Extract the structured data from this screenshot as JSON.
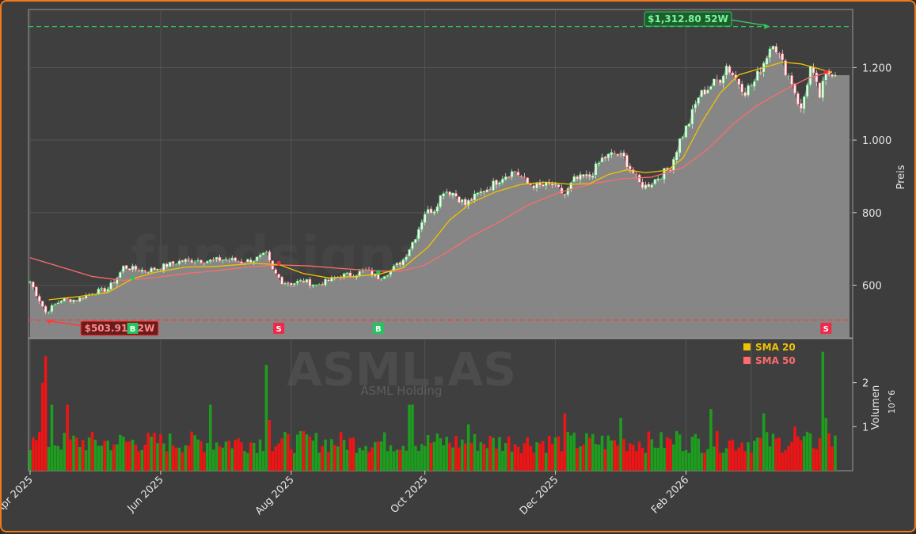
{
  "chart_data": {
    "type": "candlestick",
    "watermark": "fundsignale.trade",
    "ticker_watermark": "ASML.AS",
    "company_watermark": "ASML Holding",
    "x_tick_labels": [
      "Apr 2025",
      "Jun 2025",
      "Aug 2025",
      "Oct 2025",
      "Dec 2025",
      "Feb 2026"
    ],
    "price_axis": {
      "label": "Preis",
      "ticks": [
        "600",
        "800",
        "1.000",
        "1.200"
      ],
      "tick_values": [
        600,
        800,
        1000,
        1200
      ],
      "ylim": [
        455,
        1360
      ]
    },
    "volume_axis": {
      "label": "Volumen",
      "multiplier": "10^6",
      "ticks": [
        "1",
        "2"
      ],
      "tick_values": [
        1,
        2
      ],
      "ylim": [
        0,
        3.0
      ]
    },
    "high_52w": {
      "label": "$1,312.80 52W",
      "value": 1312.8,
      "date_index": 238
    },
    "low_52w": {
      "label": "$503.91 52W",
      "value": 503.91,
      "date_index": 5
    },
    "legend": [
      {
        "name": "SMA 20",
        "color": "#f2c200"
      },
      {
        "name": "SMA 50",
        "color": "#ff6b6b"
      }
    ],
    "signals": [
      {
        "type": "B",
        "date_index": 33,
        "price": 620
      },
      {
        "type": "S",
        "date_index": 80,
        "price": 661
      },
      {
        "type": "B",
        "date_index": 112,
        "price": 636
      },
      {
        "type": "S",
        "date_index": 256,
        "price": 1188
      }
    ],
    "anchors": [
      [
        0,
        610
      ],
      [
        5,
        525
      ],
      [
        10,
        560
      ],
      [
        15,
        560
      ],
      [
        20,
        578
      ],
      [
        25,
        590
      ],
      [
        28,
        620
      ],
      [
        30,
        650
      ],
      [
        33,
        645
      ],
      [
        38,
        640
      ],
      [
        43,
        652
      ],
      [
        48,
        665
      ],
      [
        53,
        670
      ],
      [
        58,
        667
      ],
      [
        63,
        672
      ],
      [
        68,
        665
      ],
      [
        72,
        670
      ],
      [
        76,
        684
      ],
      [
        78,
        640
      ],
      [
        81,
        610
      ],
      [
        84,
        605
      ],
      [
        88,
        612
      ],
      [
        92,
        600
      ],
      [
        96,
        612
      ],
      [
        100,
        626
      ],
      [
        104,
        630
      ],
      [
        108,
        640
      ],
      [
        112,
        622
      ],
      [
        116,
        640
      ],
      [
        120,
        670
      ],
      [
        124,
        735
      ],
      [
        127,
        800
      ],
      [
        130,
        810
      ],
      [
        133,
        862
      ],
      [
        136,
        855
      ],
      [
        140,
        822
      ],
      [
        144,
        850
      ],
      [
        148,
        872
      ],
      [
        152,
        900
      ],
      [
        156,
        915
      ],
      [
        160,
        880
      ],
      [
        164,
        872
      ],
      [
        168,
        876
      ],
      [
        172,
        848
      ],
      [
        175,
        890
      ],
      [
        180,
        900
      ],
      [
        184,
        948
      ],
      [
        188,
        963
      ],
      [
        191,
        950
      ],
      [
        194,
        910
      ],
      [
        196,
        880
      ],
      [
        198,
        873
      ],
      [
        200,
        884
      ],
      [
        203,
        905
      ],
      [
        206,
        925
      ],
      [
        209,
        1000
      ],
      [
        212,
        1050
      ],
      [
        215,
        1120
      ],
      [
        219,
        1150
      ],
      [
        222,
        1170
      ],
      [
        224,
        1205
      ],
      [
        227,
        1170
      ],
      [
        230,
        1135
      ],
      [
        233,
        1160
      ],
      [
        236,
        1215
      ],
      [
        239,
        1275
      ],
      [
        242,
        1210
      ],
      [
        245,
        1160
      ],
      [
        248,
        1080
      ],
      [
        251,
        1200
      ],
      [
        254,
        1120
      ],
      [
        256,
        1180
      ],
      [
        258,
        1188
      ]
    ],
    "sma20": [
      [
        6,
        560
      ],
      [
        15,
        568
      ],
      [
        25,
        580
      ],
      [
        33,
        618
      ],
      [
        40,
        635
      ],
      [
        50,
        650
      ],
      [
        60,
        652
      ],
      [
        72,
        660
      ],
      [
        80,
        657
      ],
      [
        88,
        632
      ],
      [
        96,
        620
      ],
      [
        104,
        624
      ],
      [
        112,
        630
      ],
      [
        120,
        648
      ],
      [
        128,
        705
      ],
      [
        135,
        780
      ],
      [
        142,
        828
      ],
      [
        150,
        858
      ],
      [
        158,
        878
      ],
      [
        166,
        884
      ],
      [
        174,
        878
      ],
      [
        180,
        880
      ],
      [
        186,
        905
      ],
      [
        192,
        918
      ],
      [
        198,
        910
      ],
      [
        205,
        917
      ],
      [
        210,
        950
      ],
      [
        216,
        1048
      ],
      [
        222,
        1130
      ],
      [
        228,
        1180
      ],
      [
        236,
        1200
      ],
      [
        242,
        1215
      ],
      [
        248,
        1210
      ],
      [
        254,
        1196
      ],
      [
        258,
        1186
      ]
    ],
    "sma50": [
      [
        0,
        676
      ],
      [
        10,
        650
      ],
      [
        20,
        624
      ],
      [
        30,
        613
      ],
      [
        40,
        621
      ],
      [
        50,
        632
      ],
      [
        60,
        640
      ],
      [
        70,
        650
      ],
      [
        80,
        656
      ],
      [
        90,
        653
      ],
      [
        100,
        646
      ],
      [
        110,
        640
      ],
      [
        118,
        638
      ],
      [
        126,
        652
      ],
      [
        134,
        690
      ],
      [
        142,
        735
      ],
      [
        150,
        770
      ],
      [
        160,
        820
      ],
      [
        170,
        855
      ],
      [
        180,
        878
      ],
      [
        190,
        893
      ],
      [
        200,
        898
      ],
      [
        210,
        924
      ],
      [
        218,
        975
      ],
      [
        226,
        1043
      ],
      [
        234,
        1096
      ],
      [
        242,
        1135
      ],
      [
        250,
        1170
      ],
      [
        258,
        1190
      ]
    ],
    "volume_highlights": [
      [
        4,
        2.0
      ],
      [
        5,
        2.6
      ],
      [
        7,
        1.5
      ],
      [
        12,
        1.5
      ],
      [
        28,
        0.6
      ],
      [
        58,
        1.5
      ],
      [
        76,
        2.4
      ],
      [
        77,
        1.15
      ],
      [
        88,
        0.9
      ],
      [
        122,
        1.5
      ],
      [
        123,
        1.5
      ],
      [
        141,
        1.05
      ],
      [
        172,
        1.3
      ],
      [
        190,
        1.2
      ],
      [
        208,
        0.9
      ],
      [
        219,
        1.4
      ],
      [
        236,
        1.3
      ],
      [
        246,
        1.0
      ],
      [
        255,
        2.7
      ],
      [
        256,
        1.2
      ],
      [
        257,
        0.85
      ]
    ]
  }
}
